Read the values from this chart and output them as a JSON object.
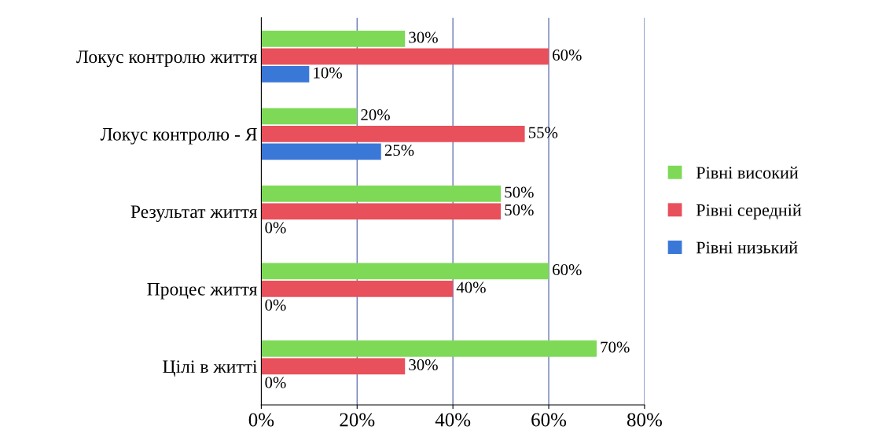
{
  "chart_data": {
    "type": "bar",
    "orientation": "horizontal",
    "categories": [
      "Локус контролю життя",
      "Локус контролю - Я",
      "Результат життя",
      "Процес життя",
      "Цілі в житті"
    ],
    "series": [
      {
        "name": "Рівні високий",
        "color": "#7ed957",
        "values": [
          30,
          20,
          50,
          60,
          70
        ],
        "value_labels": [
          "30%",
          "20%",
          "50%",
          "60%",
          "70%"
        ]
      },
      {
        "name": "Рівні середній",
        "color": "#e8505b",
        "values": [
          60,
          55,
          50,
          40,
          30
        ],
        "value_labels": [
          "60%",
          "55%",
          "50%",
          "40%",
          "30%"
        ]
      },
      {
        "name": "Рівні низький",
        "color": "#3a78d8",
        "values": [
          10,
          25,
          0,
          0,
          0
        ],
        "value_labels": [
          "10%",
          "25%",
          "0%",
          "0%",
          "0%"
        ]
      }
    ],
    "xlim": [
      0,
      80
    ],
    "xticks": [
      {
        "value": 0,
        "label": "0%"
      },
      {
        "value": 20,
        "label": "20%"
      },
      {
        "value": 40,
        "label": "40%"
      },
      {
        "value": 60,
        "label": "60%"
      },
      {
        "value": 80,
        "label": "80%"
      }
    ],
    "grid": "x",
    "legend": "right"
  }
}
